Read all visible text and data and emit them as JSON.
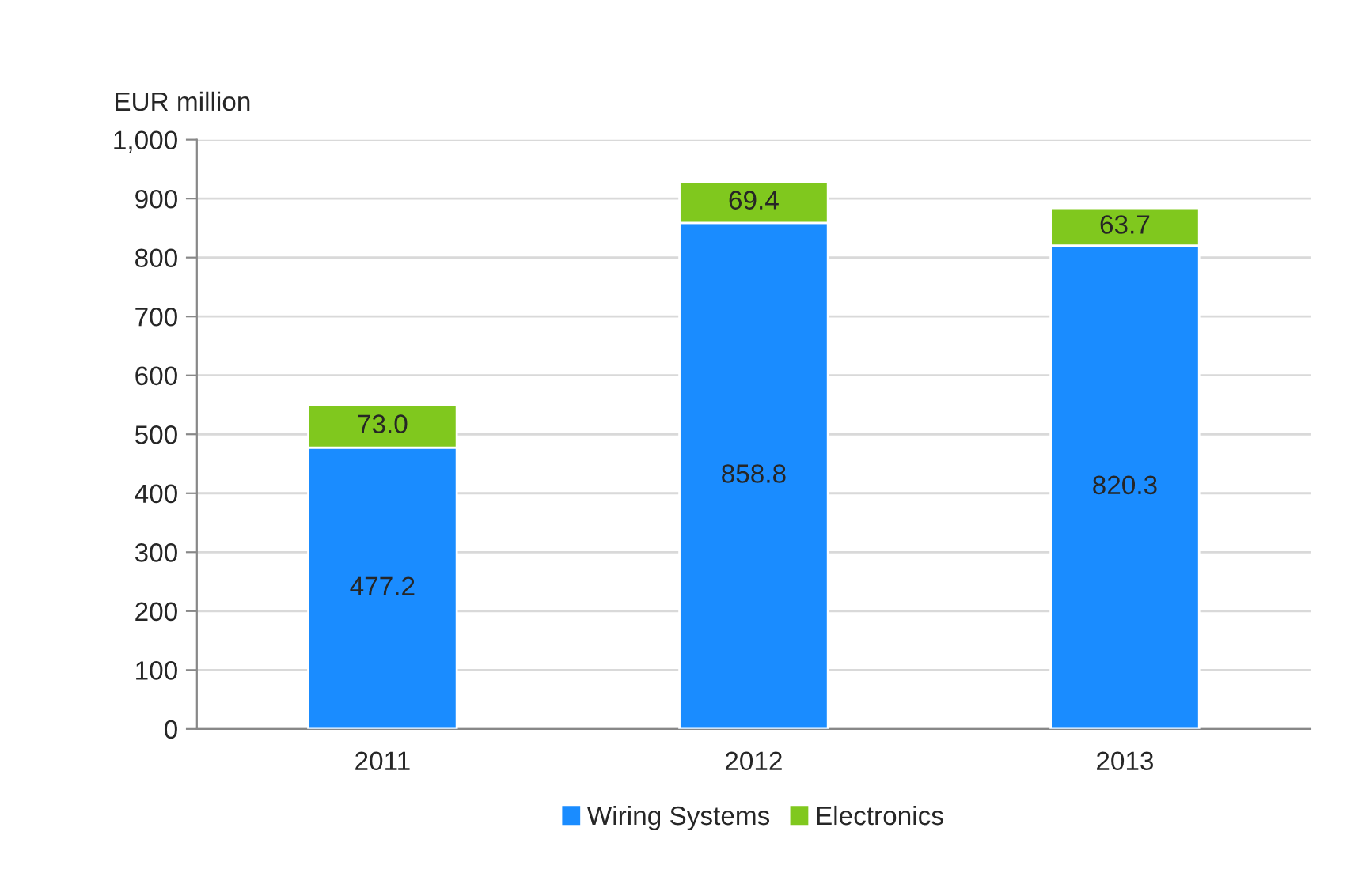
{
  "chart_data": {
    "type": "bar",
    "stacked": true,
    "ylabel": "EUR million",
    "categories": [
      "2011",
      "2012",
      "2013"
    ],
    "series": [
      {
        "name": "Wiring Systems",
        "color": "#1a8cff",
        "values": [
          477.2,
          858.8,
          820.3
        ],
        "value_labels": [
          "477.2",
          "858.8",
          "820.3"
        ]
      },
      {
        "name": "Electronics",
        "color": "#80c81e",
        "values": [
          73.0,
          69.4,
          63.7
        ],
        "value_labels": [
          "73.0",
          "69.4",
          "63.7"
        ]
      }
    ],
    "ylim": [
      0,
      1000
    ],
    "yticks": [
      0,
      100,
      200,
      300,
      400,
      500,
      600,
      700,
      800,
      900,
      {
        "value": 1000,
        "label": "1,000"
      }
    ],
    "grid": "y",
    "legend": "bottom"
  }
}
